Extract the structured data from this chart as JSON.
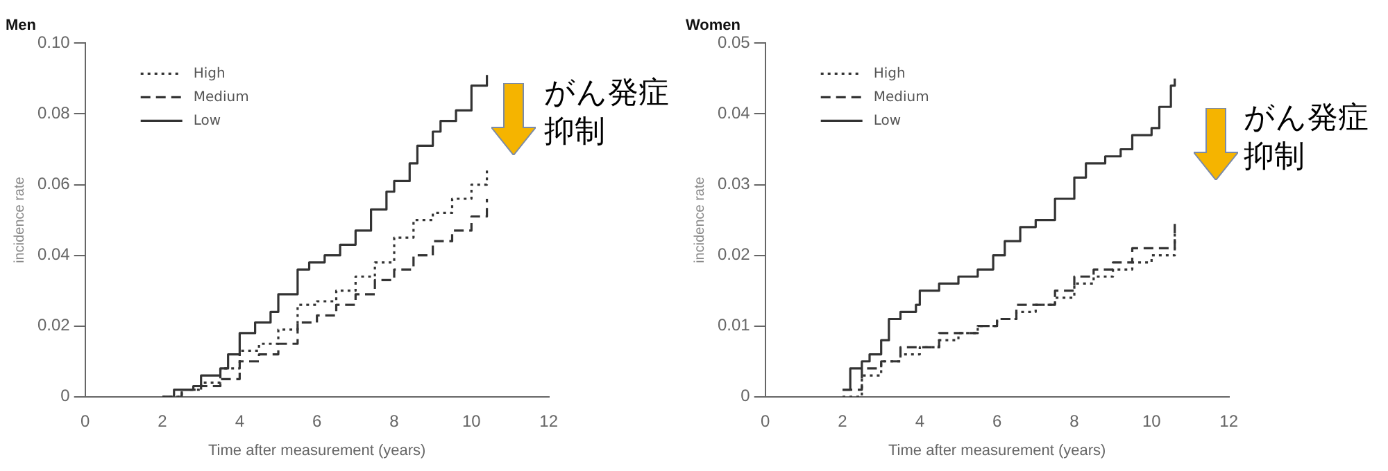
{
  "chart_data": [
    {
      "type": "step",
      "title": "Men",
      "xlabel": "Time after measurement (years)",
      "ylabel": "incidence rate",
      "legend": "top left",
      "grid": false,
      "xlim": [
        0,
        12
      ],
      "xticks": [
        0,
        2,
        4,
        6,
        8,
        10,
        12
      ],
      "ylim": [
        0,
        0.1
      ],
      "yticks": [
        0,
        {
          "value": 0.02,
          "label": "0.02"
        },
        {
          "value": 0.04,
          "label": "0.04"
        },
        {
          "value": 0.06,
          "label": "0.06"
        },
        {
          "value": 0.08,
          "label": "0.08"
        },
        {
          "value": 0.1,
          "label": "0.10"
        }
      ],
      "annotations": [
        "がん発症抑制"
      ],
      "series": [
        {
          "name": "High",
          "color": "#333333",
          "line_style": "dotted",
          "x": [
            2,
            2.5,
            3,
            3.5,
            4,
            4.5,
            5,
            5.5,
            6,
            6.5,
            7,
            7.5,
            8,
            8.5,
            9,
            9.5,
            10,
            10.4
          ],
          "values": [
            0,
            0.002,
            0.004,
            0.008,
            0.013,
            0.015,
            0.019,
            0.026,
            0.027,
            0.03,
            0.034,
            0.038,
            0.045,
            0.05,
            0.052,
            0.056,
            0.06,
            0.065
          ]
        },
        {
          "name": "Medium",
          "color": "#333333",
          "line_style": "dashed",
          "x": [
            2,
            2.5,
            3,
            3.5,
            4,
            4.5,
            5,
            5.5,
            6,
            6.5,
            7,
            7.5,
            8,
            8.5,
            9,
            9.5,
            10,
            10.4
          ],
          "values": [
            0,
            0.002,
            0.003,
            0.005,
            0.01,
            0.012,
            0.015,
            0.021,
            0.023,
            0.026,
            0.029,
            0.033,
            0.036,
            0.04,
            0.044,
            0.047,
            0.051,
            0.056
          ]
        },
        {
          "name": "Low",
          "color": "#333333",
          "line_style": "solid",
          "x": [
            2,
            2.3,
            2.8,
            3,
            3.5,
            3.7,
            4,
            4.4,
            4.8,
            5,
            5.5,
            5.8,
            6.2,
            6.6,
            7,
            7.4,
            7.8,
            8,
            8.4,
            8.6,
            9,
            9.2,
            9.6,
            10,
            10.4
          ],
          "values": [
            0,
            0.002,
            0.003,
            0.006,
            0.008,
            0.012,
            0.018,
            0.021,
            0.024,
            0.029,
            0.036,
            0.038,
            0.04,
            0.043,
            0.047,
            0.053,
            0.058,
            0.061,
            0.066,
            0.071,
            0.075,
            0.078,
            0.081,
            0.088,
            0.091
          ]
        }
      ]
    },
    {
      "type": "step",
      "title": "Women",
      "xlabel": "Time after measurement (years)",
      "ylabel": "incidence rate",
      "legend": "top left",
      "grid": false,
      "xlim": [
        0,
        12
      ],
      "xticks": [
        0,
        2,
        4,
        6,
        8,
        10,
        12
      ],
      "ylim": [
        0,
        0.05
      ],
      "yticks": [
        0,
        0.01,
        0.02,
        0.03,
        0.04,
        0.05
      ],
      "annotations": [
        "がん発症抑制"
      ],
      "series": [
        {
          "name": "High",
          "color": "#333333",
          "line_style": "dotted",
          "x": [
            2,
            2.5,
            3,
            3.5,
            4,
            4.5,
            5,
            5.5,
            6,
            6.5,
            7,
            7.5,
            8,
            8.5,
            9,
            9.5,
            10,
            10.6
          ],
          "values": [
            0,
            0.003,
            0.005,
            0.006,
            0.007,
            0.008,
            0.009,
            0.01,
            0.011,
            0.012,
            0.013,
            0.014,
            0.016,
            0.017,
            0.018,
            0.019,
            0.02,
            0.023
          ]
        },
        {
          "name": "Medium",
          "color": "#333333",
          "line_style": "dashed",
          "x": [
            2,
            2.5,
            3,
            3.5,
            4,
            4.5,
            5,
            5.5,
            6,
            6.5,
            7,
            7.5,
            8,
            8.5,
            9,
            9.5,
            10,
            10.6
          ],
          "values": [
            0.001,
            0.004,
            0.005,
            0.007,
            0.007,
            0.009,
            0.009,
            0.01,
            0.011,
            0.013,
            0.013,
            0.015,
            0.017,
            0.018,
            0.019,
            0.021,
            0.021,
            0.025
          ]
        },
        {
          "name": "Low",
          "color": "#333333",
          "line_style": "solid",
          "x": [
            2,
            2.2,
            2.5,
            2.7,
            3,
            3.2,
            3.5,
            3.9,
            4,
            4.5,
            5,
            5.5,
            5.9,
            6.2,
            6.6,
            7,
            7.5,
            8,
            8.3,
            8.8,
            9.2,
            9.5,
            10,
            10.2,
            10.5,
            10.6
          ],
          "values": [
            0.001,
            0.004,
            0.005,
            0.006,
            0.008,
            0.011,
            0.012,
            0.013,
            0.015,
            0.016,
            0.017,
            0.018,
            0.02,
            0.022,
            0.024,
            0.025,
            0.028,
            0.031,
            0.033,
            0.034,
            0.035,
            0.037,
            0.038,
            0.041,
            0.044,
            0.045
          ]
        }
      ]
    }
  ]
}
